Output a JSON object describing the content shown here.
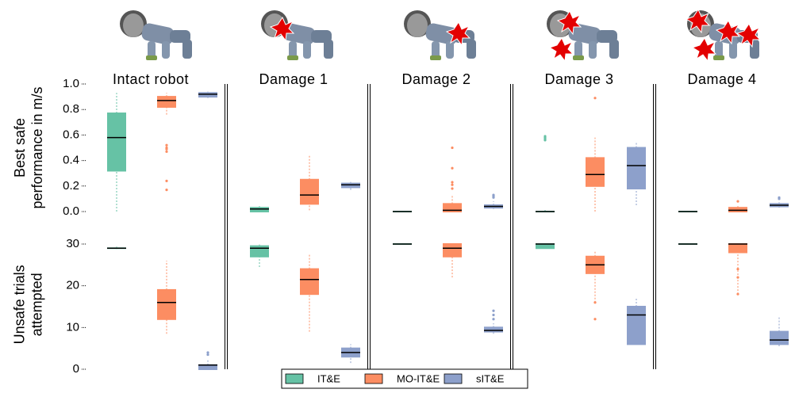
{
  "chart_data": [
    {
      "type": "box",
      "panel_titles": [
        "Intact robot",
        "Damage 1",
        "Damage 2",
        "Damage 3",
        "Damage 4"
      ],
      "ylabel": [
        "Best safe",
        "performance in m/s"
      ],
      "ylim": [
        0,
        1.0
      ],
      "yticks": [
        {
          "value": 0,
          "label": "0.0"
        },
        {
          "value": 0.2,
          "label": "0.2"
        },
        {
          "value": 0.4,
          "label": "0.4"
        },
        {
          "value": 0.6,
          "label": "0.6"
        },
        {
          "value": 0.8,
          "label": "0.8"
        },
        {
          "value": 1.0,
          "label": "1.0"
        }
      ],
      "series": [
        {
          "name": "IT&E",
          "color": "#66c2a5",
          "boxes": [
            {
              "whisker_low": 0,
              "q1": 0.32,
              "median": 0.58,
              "q3": 0.77,
              "whisker_high": 0.93,
              "outliers": []
            },
            {
              "whisker_low": 0,
              "q1": 0.0,
              "median": 0.02,
              "q3": 0.03,
              "whisker_high": 0.05,
              "outliers": []
            },
            {
              "whisker_low": 0,
              "q1": 0,
              "median": 0,
              "q3": 0,
              "whisker_high": 0,
              "outliers": []
            },
            {
              "whisker_low": 0,
              "q1": 0,
              "median": 0,
              "q3": 0,
              "whisker_high": 0.02,
              "outliers": [
                0.56,
                0.57,
                0.58,
                0.59
              ]
            },
            {
              "whisker_low": 0,
              "q1": 0,
              "median": 0,
              "q3": 0,
              "whisker_high": 0,
              "outliers": []
            }
          ]
        },
        {
          "name": "MO-IT&E",
          "color": "#fc8d62",
          "boxes": [
            {
              "whisker_low": 0.76,
              "q1": 0.82,
              "median": 0.87,
              "q3": 0.9,
              "whisker_high": 0.93,
              "outliers": [
                0.17,
                0.24,
                0.47,
                0.49,
                0.5,
                0.52
              ]
            },
            {
              "whisker_low": 0.01,
              "q1": 0.06,
              "median": 0.13,
              "q3": 0.25,
              "whisker_high": 0.44,
              "outliers": []
            },
            {
              "whisker_low": 0,
              "q1": 0,
              "median": 0.01,
              "q3": 0.06,
              "whisker_high": 0.13,
              "outliers": [
                0.18,
                0.21,
                0.23,
                0.34,
                0.5
              ]
            },
            {
              "whisker_low": 0,
              "q1": 0.2,
              "median": 0.29,
              "q3": 0.42,
              "whisker_high": 0.58,
              "outliers": [
                0.89
              ]
            },
            {
              "whisker_low": 0,
              "q1": 0,
              "median": 0.01,
              "q3": 0.03,
              "whisker_high": 0.05,
              "outliers": [
                0.08
              ]
            }
          ]
        },
        {
          "name": "sIT&E",
          "color": "#8da0cb",
          "boxes": [
            {
              "whisker_low": 0.89,
              "q1": 0.9,
              "median": 0.92,
              "q3": 0.93,
              "whisker_high": 0.94,
              "outliers": []
            },
            {
              "whisker_low": 0.17,
              "q1": 0.19,
              "median": 0.21,
              "q3": 0.22,
              "whisker_high": 0.24,
              "outliers": []
            },
            {
              "whisker_low": 0.02,
              "q1": 0.03,
              "median": 0.04,
              "q3": 0.05,
              "whisker_high": 0.08,
              "outliers": [
                0.11,
                0.12,
                0.13
              ]
            },
            {
              "whisker_low": 0.05,
              "q1": 0.18,
              "median": 0.36,
              "q3": 0.5,
              "whisker_high": 0.55,
              "outliers": []
            },
            {
              "whisker_low": 0.03,
              "q1": 0.04,
              "median": 0.05,
              "q3": 0.06,
              "whisker_high": 0.08,
              "outliers": [
                0.1,
                0.11
              ]
            }
          ]
        }
      ]
    },
    {
      "type": "box",
      "ylabel": [
        "Unsafe trials",
        "attempted"
      ],
      "ylim": [
        0,
        31
      ],
      "yticks": [
        0,
        10,
        20,
        30
      ],
      "series": [
        {
          "name": "IT&E",
          "color": "#66c2a5",
          "boxes": [
            {
              "whisker_low": 28.8,
              "q1": 29,
              "median": 29,
              "q3": 29,
              "whisker_high": 29.5,
              "outliers": []
            },
            {
              "whisker_low": 24.5,
              "q1": 27,
              "median": 29,
              "q3": 29.5,
              "whisker_high": 30,
              "outliers": []
            },
            {
              "whisker_low": 30,
              "q1": 30,
              "median": 30,
              "q3": 30,
              "whisker_high": 30,
              "outliers": []
            },
            {
              "whisker_low": 29,
              "q1": 29,
              "median": 30,
              "q3": 30,
              "whisker_high": 30,
              "outliers": []
            },
            {
              "whisker_low": 30,
              "q1": 30,
              "median": 30,
              "q3": 30,
              "whisker_high": 30,
              "outliers": []
            }
          ]
        },
        {
          "name": "MO-IT&E",
          "color": "#fc8d62",
          "boxes": [
            {
              "whisker_low": 8.5,
              "q1": 12,
              "median": 16,
              "q3": 19,
              "whisker_high": 26,
              "outliers": []
            },
            {
              "whisker_low": 9,
              "q1": 18,
              "median": 21.5,
              "q3": 24,
              "whisker_high": 27.5,
              "outliers": []
            },
            {
              "whisker_low": 22,
              "q1": 27,
              "median": 29,
              "q3": 30,
              "whisker_high": 30,
              "outliers": []
            },
            {
              "whisker_low": 16,
              "q1": 23,
              "median": 25,
              "q3": 27,
              "whisker_high": 28.5,
              "outliers": [
                12,
                16
              ]
            },
            {
              "whisker_low": 18,
              "q1": 28,
              "median": 30,
              "q3": 30,
              "whisker_high": 30,
              "outliers": [
                18,
                22,
                24
              ]
            }
          ]
        },
        {
          "name": "sIT&E",
          "color": "#8da0cb",
          "boxes": [
            {
              "whisker_low": 0,
              "q1": 0,
              "median": 1,
              "q3": 1,
              "whisker_high": 2.5,
              "outliers": [
                3.5,
                4
              ]
            },
            {
              "whisker_low": 1.5,
              "q1": 3,
              "median": 4,
              "q3": 5,
              "whisker_high": 6,
              "outliers": []
            },
            {
              "whisker_low": 8.5,
              "q1": 9,
              "median": 9.3,
              "q3": 10,
              "whisker_high": 11,
              "outliers": [
                12,
                13,
                14
              ]
            },
            {
              "whisker_low": 6,
              "q1": 6,
              "median": 13,
              "q3": 15,
              "whisker_high": 17,
              "outliers": []
            },
            {
              "whisker_low": 5.5,
              "q1": 6,
              "median": 7,
              "q3": 9,
              "whisker_high": 12.5,
              "outliers": []
            }
          ]
        }
      ]
    }
  ]
}
